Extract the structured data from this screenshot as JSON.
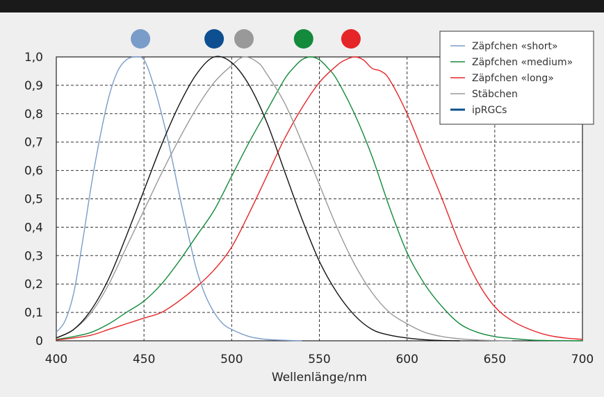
{
  "chart_data": {
    "type": "line",
    "title": "",
    "xlabel": "Wellenlänge/nm",
    "ylabel": "",
    "xlim": [
      400,
      700
    ],
    "ylim": [
      0,
      1.0
    ],
    "x_ticks": [
      "400",
      "450",
      "500",
      "550",
      "600",
      "650",
      "700"
    ],
    "y_ticks": [
      "0",
      "0,1",
      "0,2",
      "0,3",
      "0,4",
      "0,5",
      "0,6",
      "0,7",
      "0,8",
      "0,9",
      "1,0"
    ],
    "grid": true,
    "legend_position": "top-right",
    "series": [
      {
        "name": "Zäpfchen «short»",
        "color": "#7a9cc8",
        "marker_x": 448,
        "points": [
          [
            400,
            0.03
          ],
          [
            405,
            0.07
          ],
          [
            410,
            0.17
          ],
          [
            415,
            0.35
          ],
          [
            420,
            0.55
          ],
          [
            425,
            0.72
          ],
          [
            430,
            0.86
          ],
          [
            435,
            0.95
          ],
          [
            440,
            0.99
          ],
          [
            445,
            1.0
          ],
          [
            450,
            0.99
          ],
          [
            455,
            0.91
          ],
          [
            460,
            0.8
          ],
          [
            465,
            0.67
          ],
          [
            470,
            0.52
          ],
          [
            475,
            0.38
          ],
          [
            480,
            0.25
          ],
          [
            485,
            0.16
          ],
          [
            490,
            0.1
          ],
          [
            495,
            0.06
          ],
          [
            500,
            0.04
          ],
          [
            510,
            0.015
          ],
          [
            520,
            0.005
          ],
          [
            530,
            0.002
          ],
          [
            540,
            0.0
          ]
        ]
      },
      {
        "name": "Zäpfchen «medium»",
        "color": "#138a3c",
        "marker_x": 541,
        "points": [
          [
            400,
            0.005
          ],
          [
            410,
            0.015
          ],
          [
            420,
            0.03
          ],
          [
            430,
            0.06
          ],
          [
            440,
            0.1
          ],
          [
            450,
            0.14
          ],
          [
            460,
            0.2
          ],
          [
            470,
            0.28
          ],
          [
            480,
            0.37
          ],
          [
            490,
            0.46
          ],
          [
            500,
            0.58
          ],
          [
            510,
            0.7
          ],
          [
            520,
            0.81
          ],
          [
            530,
            0.92
          ],
          [
            535,
            0.96
          ],
          [
            540,
            0.99
          ],
          [
            545,
            1.0
          ],
          [
            550,
            0.99
          ],
          [
            555,
            0.96
          ],
          [
            560,
            0.92
          ],
          [
            570,
            0.8
          ],
          [
            580,
            0.65
          ],
          [
            590,
            0.47
          ],
          [
            600,
            0.31
          ],
          [
            610,
            0.2
          ],
          [
            620,
            0.12
          ],
          [
            630,
            0.06
          ],
          [
            640,
            0.03
          ],
          [
            650,
            0.015
          ],
          [
            660,
            0.008
          ],
          [
            670,
            0.003
          ],
          [
            680,
            0.001
          ],
          [
            700,
            0.0
          ]
        ]
      },
      {
        "name": "Zäpfchen «long»",
        "color": "#e52528",
        "marker_x": 568,
        "points": [
          [
            400,
            0.003
          ],
          [
            410,
            0.01
          ],
          [
            420,
            0.02
          ],
          [
            430,
            0.04
          ],
          [
            440,
            0.06
          ],
          [
            450,
            0.08
          ],
          [
            460,
            0.1
          ],
          [
            470,
            0.14
          ],
          [
            480,
            0.19
          ],
          [
            490,
            0.25
          ],
          [
            500,
            0.33
          ],
          [
            510,
            0.45
          ],
          [
            520,
            0.58
          ],
          [
            530,
            0.71
          ],
          [
            540,
            0.82
          ],
          [
            550,
            0.91
          ],
          [
            560,
            0.97
          ],
          [
            565,
            0.99
          ],
          [
            570,
            1.0
          ],
          [
            575,
            0.99
          ],
          [
            580,
            0.96
          ],
          [
            585,
            0.95
          ],
          [
            590,
            0.92
          ],
          [
            600,
            0.8
          ],
          [
            610,
            0.65
          ],
          [
            620,
            0.5
          ],
          [
            630,
            0.34
          ],
          [
            640,
            0.21
          ],
          [
            650,
            0.12
          ],
          [
            660,
            0.07
          ],
          [
            670,
            0.04
          ],
          [
            680,
            0.02
          ],
          [
            690,
            0.01
          ],
          [
            700,
            0.005
          ]
        ]
      },
      {
        "name": "Stäbchen",
        "color": "#999999",
        "marker_x": 507,
        "points": [
          [
            400,
            0.01
          ],
          [
            410,
            0.04
          ],
          [
            420,
            0.1
          ],
          [
            430,
            0.2
          ],
          [
            440,
            0.33
          ],
          [
            450,
            0.46
          ],
          [
            460,
            0.59
          ],
          [
            470,
            0.71
          ],
          [
            480,
            0.82
          ],
          [
            490,
            0.91
          ],
          [
            500,
            0.97
          ],
          [
            507,
            1.0
          ],
          [
            515,
            0.98
          ],
          [
            520,
            0.94
          ],
          [
            530,
            0.84
          ],
          [
            540,
            0.7
          ],
          [
            550,
            0.55
          ],
          [
            560,
            0.4
          ],
          [
            570,
            0.27
          ],
          [
            580,
            0.17
          ],
          [
            590,
            0.1
          ],
          [
            600,
            0.06
          ],
          [
            610,
            0.03
          ],
          [
            620,
            0.015
          ],
          [
            630,
            0.007
          ],
          [
            640,
            0.003
          ],
          [
            650,
            0.001
          ],
          [
            660,
            0.0
          ]
        ]
      },
      {
        "name": "ipRGCs",
        "color": "#0d4f91",
        "marker_x": 490,
        "line_color": "#111111",
        "points": [
          [
            400,
            0.01
          ],
          [
            410,
            0.04
          ],
          [
            420,
            0.11
          ],
          [
            430,
            0.22
          ],
          [
            440,
            0.37
          ],
          [
            450,
            0.53
          ],
          [
            460,
            0.69
          ],
          [
            470,
            0.83
          ],
          [
            480,
            0.94
          ],
          [
            490,
            1.0
          ],
          [
            500,
            0.98
          ],
          [
            510,
            0.9
          ],
          [
            520,
            0.77
          ],
          [
            530,
            0.6
          ],
          [
            540,
            0.43
          ],
          [
            550,
            0.28
          ],
          [
            560,
            0.17
          ],
          [
            570,
            0.09
          ],
          [
            580,
            0.04
          ],
          [
            590,
            0.02
          ],
          [
            600,
            0.01
          ],
          [
            610,
            0.004
          ],
          [
            620,
            0.001
          ],
          [
            630,
            0.0
          ]
        ]
      }
    ]
  }
}
